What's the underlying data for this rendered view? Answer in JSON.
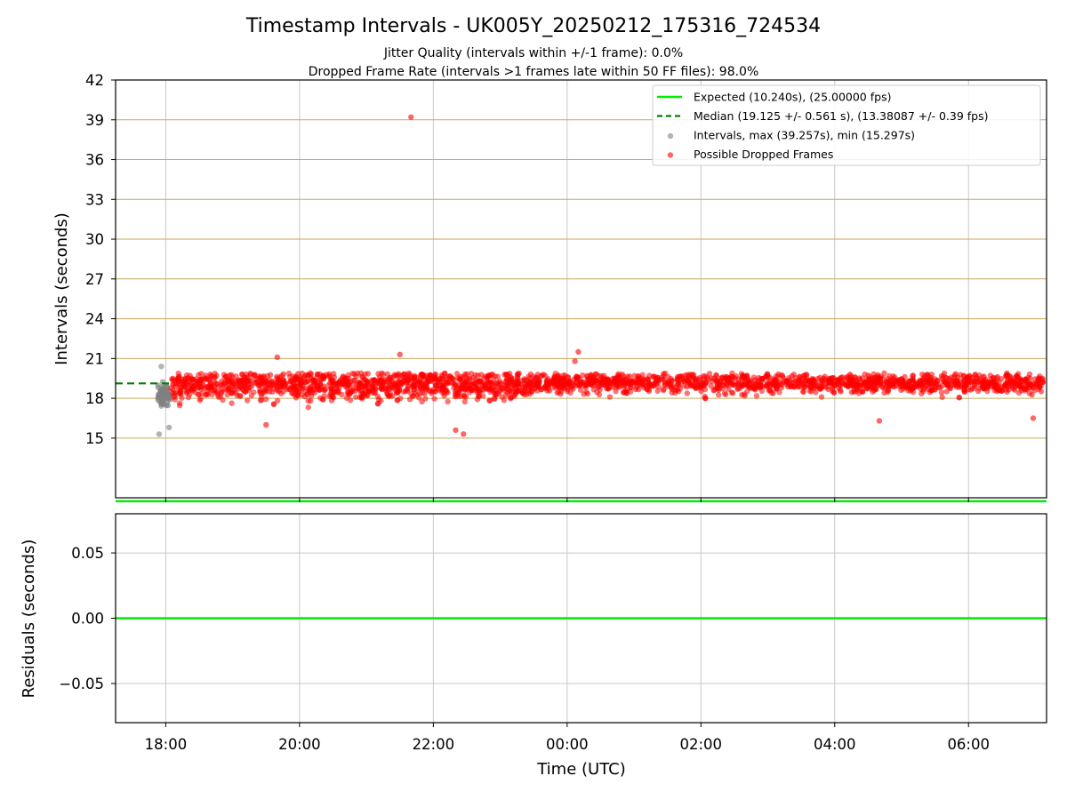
{
  "chart_data": {
    "title": "Timestamp Intervals - UK005Y_20250212_175316_724534",
    "subtitles": [
      "Jitter Quality (intervals within +/-1 frame): 0.0%",
      "Dropped Frame Rate (intervals >1 frames late within 50 FF files): 98.0%"
    ],
    "colors": {
      "expected": "#00ee00",
      "median": "#008000",
      "intervals": "#808080",
      "dropped": "#ff0000",
      "hgrid": "#c8aa5a",
      "grid": "#c8c8c8"
    },
    "top_panel": {
      "type": "scatter",
      "ylabel": "Intervals (seconds)",
      "ylim": [
        10.5,
        42
      ],
      "yticks": [
        "15",
        "18",
        "21",
        "24",
        "27",
        "30",
        "33",
        "36",
        "39",
        "42"
      ],
      "expected_value": 10.24,
      "median_value": 19.125,
      "legend_position": "top-right",
      "legend": [
        {
          "label": "Expected (10.240s), (25.00000 fps)",
          "kind": "line"
        },
        {
          "label": "Median (19.125 +/- 0.561 s), (13.38087 +/- 0.39 fps)",
          "kind": "dashed"
        },
        {
          "label": "Intervals, max (39.257s), min (15.297s)",
          "kind": "dot-gray"
        },
        {
          "label": "Possible Dropped Frames",
          "kind": "dot-red"
        }
      ],
      "series": [
        {
          "name": "Intervals, max (39.257s), min (15.297s)",
          "start_time": "17:53",
          "end_time": "18:04",
          "max": 39.257,
          "min": 15.297,
          "center": 18.2,
          "spread": 0.9
        },
        {
          "name": "Possible Dropped Frames",
          "start_time": "18:04",
          "end_time": "07:07",
          "center": 19.1,
          "spread": 0.6,
          "count": 2600
        }
      ],
      "outliers": [
        {
          "time": "21:40",
          "value": 39.2
        },
        {
          "time": "00:10",
          "value": 21.5
        },
        {
          "time": "21:30",
          "value": 21.3
        },
        {
          "time": "19:40",
          "value": 21.1
        },
        {
          "time": "00:07",
          "value": 20.8
        },
        {
          "time": "22:27",
          "value": 15.3
        },
        {
          "time": "22:20",
          "value": 15.6
        },
        {
          "time": "19:30",
          "value": 16.0
        },
        {
          "time": "04:40",
          "value": 16.3
        },
        {
          "time": "06:58",
          "value": 16.5
        }
      ]
    },
    "bottom_panel": {
      "type": "line",
      "ylabel": "Residuals (seconds)",
      "ylim": [
        -0.08,
        0.08
      ],
      "yticks": [
        "0.05",
        "0.00",
        "−0.05"
      ],
      "ytick_values": [
        0.05,
        0.0,
        -0.05
      ],
      "residual_value": 0.0
    },
    "x_axis": {
      "xlabel": "Time (UTC)",
      "range": [
        "17:15",
        "07:10"
      ],
      "ticks": [
        "18:00",
        "20:00",
        "22:00",
        "00:00",
        "02:00",
        "04:00",
        "06:00"
      ]
    }
  }
}
